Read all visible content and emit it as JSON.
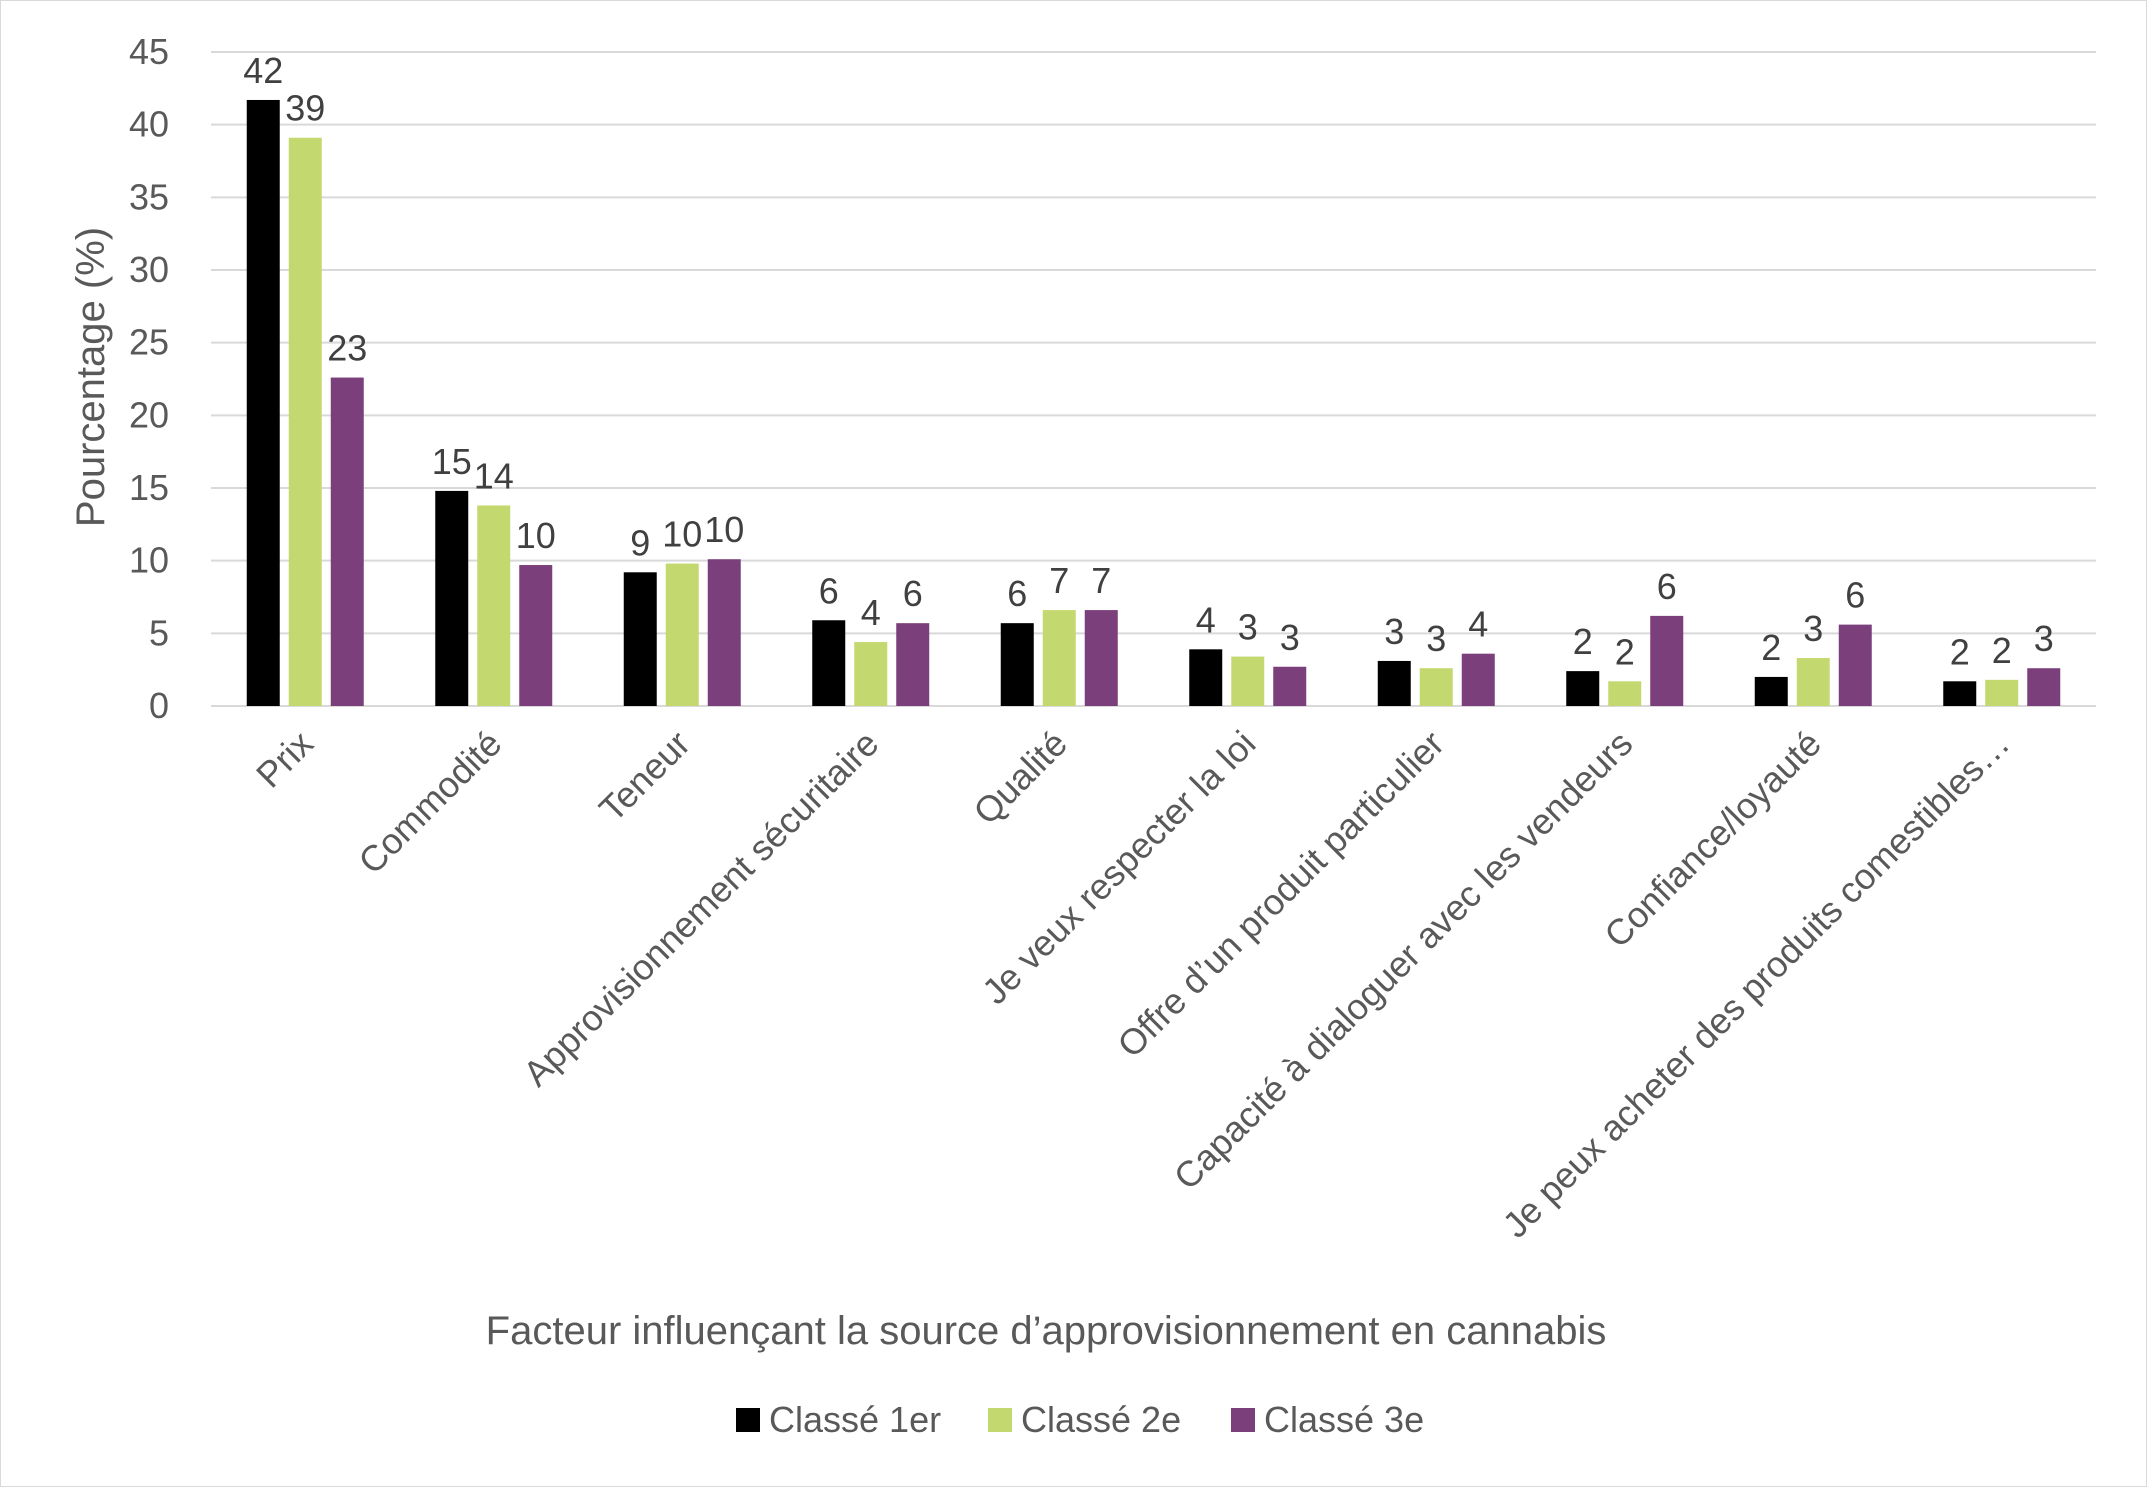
{
  "chart_data": {
    "type": "bar",
    "title": "",
    "xlabel": "Facteur influençant la source d’approvisionnement en cannabis",
    "ylabel": "Pourcentage (%)",
    "ylim": [
      0,
      45
    ],
    "yticks": [
      0,
      5,
      10,
      15,
      20,
      25,
      30,
      35,
      40,
      45
    ],
    "grid": true,
    "legend_position": "bottom",
    "categories": [
      "Prix",
      "Commodité",
      "Teneur",
      "Approvisionnement sécuritaire",
      "Qualité",
      "Je veux respecter la loi",
      "Offre d’un produit particulier",
      "Capacité à dialoguer avec les vendeurs",
      "Confiance/loyauté",
      "Je peux acheter des produits comestibles…"
    ],
    "series": [
      {
        "name": "Classé 1er",
        "color": "#000000",
        "values": [
          41.7,
          14.8,
          9.2,
          5.9,
          5.7,
          3.9,
          3.1,
          2.4,
          2.0,
          1.7
        ],
        "labels": [
          "42",
          "15",
          "9",
          "6",
          "6",
          "4",
          "3",
          "2",
          "2",
          "2"
        ]
      },
      {
        "name": "Classé 2e",
        "color": "#c3d96f",
        "values": [
          39.1,
          13.8,
          9.8,
          4.4,
          6.6,
          3.4,
          2.6,
          1.7,
          3.3,
          1.8
        ],
        "labels": [
          "39",
          "14",
          "10",
          "4",
          "7",
          "3",
          "3",
          "2",
          "3",
          "2"
        ]
      },
      {
        "name": "Classé 3e",
        "color": "#7b3f7b",
        "values": [
          22.6,
          9.7,
          10.1,
          5.7,
          6.6,
          2.7,
          3.6,
          6.2,
          5.6,
          2.6
        ],
        "labels": [
          "23",
          "10",
          "10",
          "6",
          "7",
          "3",
          "4",
          "6",
          "6",
          "3"
        ]
      }
    ]
  }
}
